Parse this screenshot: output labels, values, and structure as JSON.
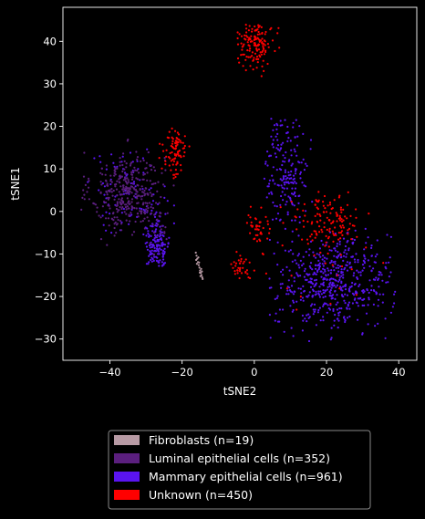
{
  "chart_data": {
    "type": "scatter",
    "title": "",
    "xlabel": "tSNE2",
    "ylabel": "tSNE1",
    "xlim": [
      -53,
      45
    ],
    "ylim": [
      -35,
      48
    ],
    "x_ticks": [
      -40,
      -20,
      0,
      20,
      40
    ],
    "y_ticks": [
      -30,
      -20,
      -10,
      0,
      10,
      20,
      30,
      40
    ],
    "grid": false,
    "legend_position": "below",
    "background": "#000000",
    "series": [
      {
        "name": "Fibroblasts (n=19)",
        "color": "#b79aa4",
        "points": [
          [
            -16.2,
            -9.7
          ],
          [
            -16.0,
            -10.4
          ],
          [
            -15.8,
            -11.1
          ],
          [
            -15.6,
            -11.9
          ],
          [
            -15.4,
            -12.6
          ],
          [
            -15.2,
            -13.2
          ],
          [
            -15.0,
            -13.9
          ],
          [
            -14.8,
            -14.5
          ],
          [
            -14.6,
            -15.0
          ],
          [
            -14.4,
            -15.5
          ],
          [
            -14.3,
            -15.9
          ],
          [
            -15.9,
            -12.3
          ],
          [
            -15.1,
            -14.4
          ],
          [
            -14.7,
            -13.5
          ],
          [
            -15.5,
            -10.8
          ],
          [
            -14.9,
            -15.2
          ],
          [
            -15.3,
            -12.0
          ],
          [
            -16.1,
            -11.4
          ],
          [
            -14.5,
            -14.1
          ]
        ]
      },
      {
        "name": "Luminal epithelial cells (n=352)",
        "color": "#5b1f7e",
        "points": []
      },
      {
        "name": "Mammary epithelial cells (n=961)",
        "color": "#5a14f0",
        "points": []
      },
      {
        "name": "Unknown (n=450)",
        "color": "#ff0000",
        "points": []
      }
    ],
    "clusters": [
      {
        "series": 1,
        "count": 340,
        "cx": -35.0,
        "cy": 4.5,
        "sx": 5.0,
        "sy": 4.8,
        "extent": [
          -48,
          -22,
          -8,
          17
        ]
      },
      {
        "series": 1,
        "count": 12,
        "cx": -27.0,
        "cy": -6.0,
        "sx": 2.0,
        "sy": 3.5,
        "extent": [
          -31,
          -23,
          -12,
          0
        ]
      },
      {
        "series": 2,
        "count": 150,
        "cx": -27.0,
        "cy": -7.5,
        "sx": 1.8,
        "sy": 4.0,
        "extent": [
          -31,
          -23,
          -13,
          1
        ]
      },
      {
        "series": 2,
        "count": 90,
        "cx": -35.0,
        "cy": 5.0,
        "sx": 6.0,
        "sy": 5.0,
        "extent": [
          -48,
          -22,
          -5,
          17
        ]
      },
      {
        "series": 2,
        "count": 180,
        "cx": 9.0,
        "cy": 10.0,
        "sx": 3.0,
        "sy": 6.5,
        "extent": [
          2,
          16,
          -3,
          23
        ]
      },
      {
        "series": 2,
        "count": 541,
        "cx": 22.0,
        "cy": -16.5,
        "sx": 8.0,
        "sy": 5.8,
        "extent": [
          4,
          41,
          -31,
          -4
        ]
      },
      {
        "series": 3,
        "count": 140,
        "cx": 0.5,
        "cy": 39.5,
        "sx": 2.6,
        "sy": 2.5,
        "extent": [
          -5,
          7,
          30,
          44
        ]
      },
      {
        "series": 3,
        "count": 85,
        "cx": -22.0,
        "cy": 14.0,
        "sx": 1.6,
        "sy": 3.0,
        "extent": [
          -27,
          -18,
          5,
          20
        ]
      },
      {
        "series": 3,
        "count": 120,
        "cx": 20.0,
        "cy": -2.0,
        "sx": 5.0,
        "sy": 3.5,
        "extent": [
          10,
          33,
          -10,
          6
        ]
      },
      {
        "series": 3,
        "count": 40,
        "cx": 1.0,
        "cy": -4.0,
        "sx": 1.6,
        "sy": 2.8,
        "extent": [
          -3,
          5,
          -10,
          4
        ]
      },
      {
        "series": 3,
        "count": 35,
        "cx": -4.0,
        "cy": -13.0,
        "sx": 1.7,
        "sy": 1.7,
        "extent": [
          -8,
          0,
          -16,
          -9
        ]
      },
      {
        "series": 3,
        "count": 30,
        "cx": 18.0,
        "cy": -12.0,
        "sx": 12.0,
        "sy": 9.0,
        "extent": [
          2,
          38,
          -28,
          4
        ]
      }
    ]
  }
}
